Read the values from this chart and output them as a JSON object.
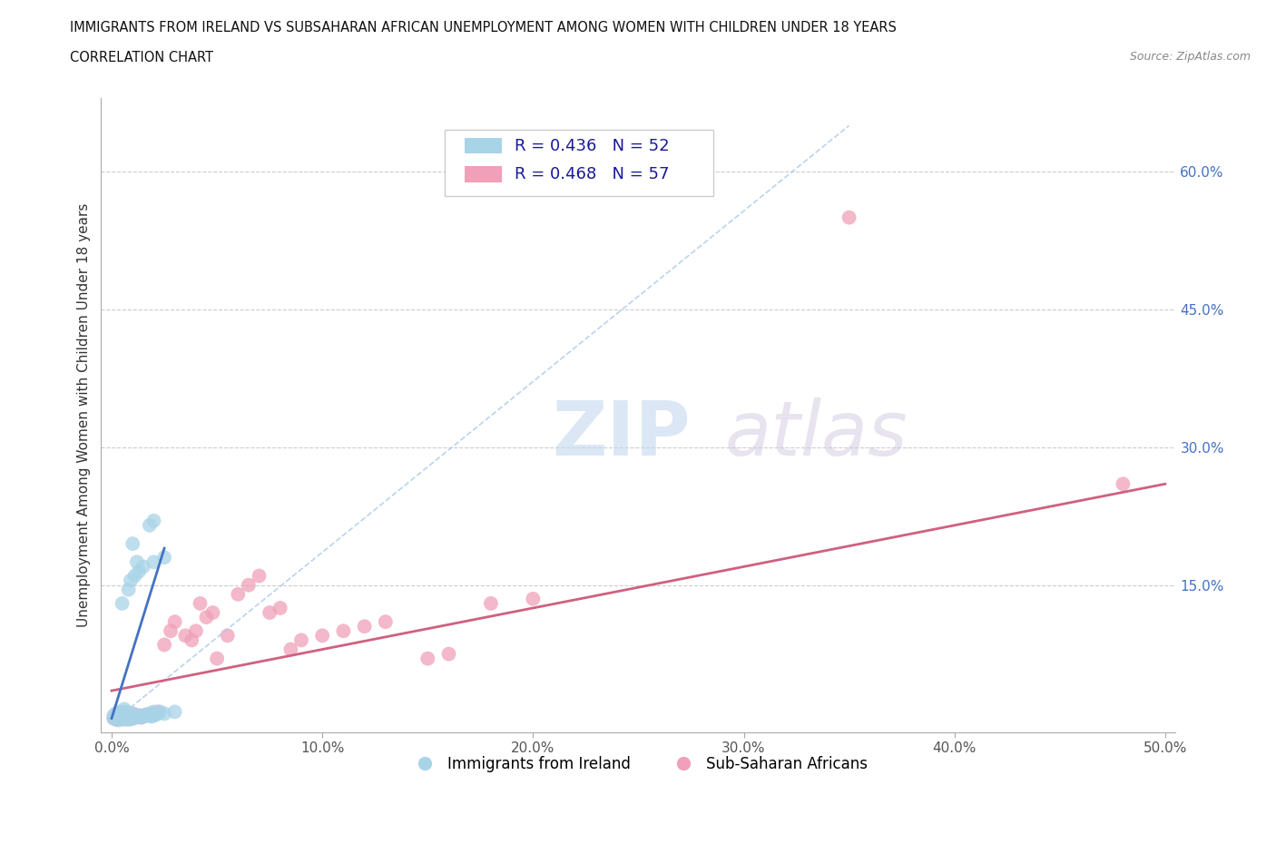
{
  "title1": "IMMIGRANTS FROM IRELAND VS SUBSAHARAN AFRICAN UNEMPLOYMENT AMONG WOMEN WITH CHILDREN UNDER 18 YEARS",
  "title2": "CORRELATION CHART",
  "source": "Source: ZipAtlas.com",
  "ylabel": "Unemployment Among Women with Children Under 18 years",
  "xlim": [
    -0.005,
    0.505
  ],
  "ylim": [
    -0.01,
    0.68
  ],
  "yticks": [
    0.15,
    0.3,
    0.45,
    0.6
  ],
  "xticks": [
    0.0,
    0.1,
    0.2,
    0.3,
    0.4,
    0.5
  ],
  "ireland_color": "#a8d4e8",
  "ireland_line_color": "#4472c4",
  "subsaharan_color": "#f0a0b8",
  "subsaharan_line_color": "#d06080",
  "R_ireland": 0.436,
  "N_ireland": 52,
  "R_subsaharan": 0.468,
  "N_subsaharan": 57,
  "legend_labels": [
    "Immigrants from Ireland",
    "Sub-Saharan Africans"
  ],
  "watermark_zip": "ZIP",
  "watermark_atlas": "atlas",
  "ireland_x": [
    0.001,
    0.001,
    0.002,
    0.002,
    0.003,
    0.003,
    0.003,
    0.004,
    0.004,
    0.005,
    0.005,
    0.005,
    0.006,
    0.006,
    0.006,
    0.007,
    0.007,
    0.007,
    0.008,
    0.008,
    0.009,
    0.009,
    0.01,
    0.01,
    0.011,
    0.012,
    0.013,
    0.014,
    0.015,
    0.016,
    0.017,
    0.018,
    0.019,
    0.02,
    0.02,
    0.021,
    0.022,
    0.023,
    0.025,
    0.03,
    0.01,
    0.012,
    0.018,
    0.02,
    0.005,
    0.008,
    0.009,
    0.011,
    0.013,
    0.015,
    0.02,
    0.025
  ],
  "ireland_y": [
    0.005,
    0.008,
    0.005,
    0.01,
    0.003,
    0.007,
    0.012,
    0.005,
    0.009,
    0.004,
    0.008,
    0.012,
    0.005,
    0.01,
    0.015,
    0.004,
    0.008,
    0.012,
    0.005,
    0.01,
    0.004,
    0.009,
    0.005,
    0.01,
    0.007,
    0.006,
    0.008,
    0.006,
    0.007,
    0.009,
    0.008,
    0.01,
    0.007,
    0.008,
    0.012,
    0.009,
    0.01,
    0.012,
    0.01,
    0.012,
    0.195,
    0.175,
    0.215,
    0.22,
    0.13,
    0.145,
    0.155,
    0.16,
    0.165,
    0.17,
    0.175,
    0.18
  ],
  "subsaharan_x": [
    0.001,
    0.002,
    0.002,
    0.003,
    0.003,
    0.004,
    0.004,
    0.005,
    0.005,
    0.006,
    0.006,
    0.007,
    0.007,
    0.008,
    0.008,
    0.009,
    0.01,
    0.01,
    0.011,
    0.012,
    0.013,
    0.014,
    0.015,
    0.016,
    0.017,
    0.018,
    0.019,
    0.02,
    0.022,
    0.025,
    0.028,
    0.03,
    0.035,
    0.038,
    0.04,
    0.042,
    0.045,
    0.048,
    0.05,
    0.055,
    0.06,
    0.065,
    0.07,
    0.075,
    0.08,
    0.085,
    0.09,
    0.1,
    0.11,
    0.12,
    0.13,
    0.15,
    0.16,
    0.18,
    0.2,
    0.35,
    0.48
  ],
  "subsaharan_y": [
    0.005,
    0.004,
    0.008,
    0.005,
    0.01,
    0.004,
    0.008,
    0.005,
    0.01,
    0.004,
    0.009,
    0.005,
    0.01,
    0.004,
    0.008,
    0.006,
    0.005,
    0.01,
    0.006,
    0.007,
    0.008,
    0.006,
    0.007,
    0.008,
    0.009,
    0.008,
    0.01,
    0.01,
    0.012,
    0.085,
    0.1,
    0.11,
    0.095,
    0.09,
    0.1,
    0.13,
    0.115,
    0.12,
    0.07,
    0.095,
    0.14,
    0.15,
    0.16,
    0.12,
    0.125,
    0.08,
    0.09,
    0.095,
    0.1,
    0.105,
    0.11,
    0.07,
    0.075,
    0.13,
    0.135,
    0.55,
    0.26
  ],
  "ireland_trendline_x": [
    0.0,
    0.025
  ],
  "ireland_trendline_y": [
    0.005,
    0.19
  ],
  "subsaharan_trendline_x": [
    0.0,
    0.5
  ],
  "subsaharan_trendline_y": [
    0.035,
    0.26
  ]
}
